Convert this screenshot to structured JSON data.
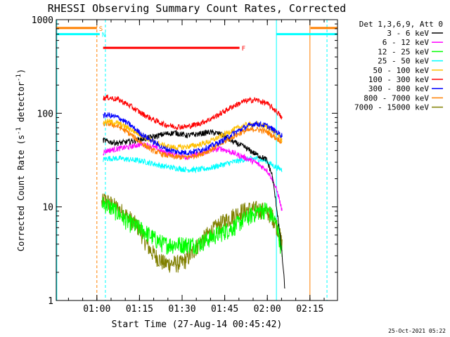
{
  "chart_data": {
    "type": "line",
    "title": "RHESSI Observing Summary Count Rates, Corrected",
    "xlabel": "Start Time (27-Aug-14 00:45:42)",
    "ylabel_parts": [
      "Corrected Count Rate (s",
      "-1",
      " detector",
      "-1",
      ")"
    ],
    "footer": "25-Oct-2021 05:22",
    "x_units": "minutes after 00:45:42",
    "xlim": [
      0,
      99
    ],
    "ylim": [
      1,
      1000
    ],
    "y_scale": "log",
    "x_ticks": [
      {
        "x": 14.3,
        "label": "01:00"
      },
      {
        "x": 29.3,
        "label": "01:15"
      },
      {
        "x": 44.3,
        "label": "01:30"
      },
      {
        "x": 59.3,
        "label": "01:45"
      },
      {
        "x": 74.3,
        "label": "02:00"
      },
      {
        "x": 89.3,
        "label": "02:15"
      }
    ],
    "y_ticks": [
      {
        "y": 1,
        "label": "1"
      },
      {
        "y": 10,
        "label": "10"
      },
      {
        "y": 100,
        "label": "100"
      },
      {
        "y": 1000,
        "label": "1000"
      }
    ],
    "legend_title": "Det 1,3,6,9, Att 0",
    "legend_position": "right",
    "series": [
      {
        "name": "3 - 6 keV",
        "color": "#000000",
        "x": [
          16.5,
          18,
          22,
          26,
          30,
          34,
          38,
          42,
          46,
          50,
          54,
          58,
          62,
          66,
          70,
          74,
          76,
          78,
          79.5,
          80.5
        ],
        "y": [
          52,
          50,
          48,
          50,
          53,
          56,
          60,
          62,
          58,
          60,
          63,
          60,
          50,
          44,
          37,
          32,
          22,
          8,
          3,
          1.3
        ]
      },
      {
        "name": "6 - 12 keV",
        "color": "#ff00ff",
        "x": [
          16.5,
          18,
          22,
          26,
          30,
          34,
          38,
          42,
          46,
          50,
          54,
          58,
          62,
          66,
          70,
          74,
          76,
          78,
          79.5
        ],
        "y": [
          38,
          40,
          42,
          44,
          47,
          44,
          38,
          36,
          34,
          37,
          40,
          42,
          38,
          34,
          30,
          25,
          20,
          14,
          9
        ]
      },
      {
        "name": "12 - 25 keV",
        "color": "#00ff00",
        "x": [
          16,
          17,
          19,
          21,
          23,
          25,
          27,
          29,
          31,
          33,
          35,
          38,
          41,
          44,
          47,
          50,
          53,
          56,
          59,
          62,
          65,
          68,
          71,
          74,
          76,
          78,
          79.5
        ],
        "y": [
          10.5,
          11,
          10,
          9,
          8,
          7,
          6.5,
          6,
          5.5,
          5,
          4.5,
          4,
          4,
          4,
          4,
          4,
          4.5,
          5,
          5.5,
          6,
          7,
          8,
          9,
          9.5,
          8,
          6,
          3
        ]
      },
      {
        "name": "25 - 50 keV",
        "color": "#00ffff",
        "x": [
          16.5,
          18,
          22,
          26,
          30,
          34,
          38,
          42,
          46,
          50,
          54,
          58,
          62,
          66,
          70,
          74,
          76,
          78,
          79.5
        ],
        "y": [
          32,
          33,
          33,
          32,
          31,
          29,
          27,
          26,
          25,
          25,
          26,
          28,
          30,
          32,
          33,
          31,
          28,
          26,
          25
        ]
      },
      {
        "name": "50 - 100 keV",
        "color": "#ffc000",
        "x": [
          16.5,
          18,
          22,
          26,
          30,
          34,
          38,
          42,
          46,
          50,
          54,
          58,
          62,
          66,
          70,
          74,
          76,
          78,
          79.5
        ],
        "y": [
          80,
          82,
          78,
          68,
          58,
          50,
          45,
          43,
          44,
          46,
          50,
          57,
          66,
          74,
          77,
          72,
          66,
          60,
          52
        ]
      },
      {
        "name": "100 - 300 keV",
        "color": "#ff0000",
        "x": [
          16.5,
          18,
          22,
          26,
          30,
          34,
          38,
          42,
          46,
          50,
          54,
          58,
          62,
          66,
          70,
          74,
          76,
          78,
          79.5
        ],
        "y": [
          145,
          148,
          140,
          120,
          100,
          86,
          76,
          72,
          72,
          77,
          86,
          100,
          118,
          134,
          140,
          128,
          115,
          102,
          88
        ]
      },
      {
        "name": "300 - 800 keV",
        "color": "#0000ff",
        "x": [
          16.5,
          18,
          22,
          26,
          30,
          34,
          38,
          42,
          46,
          50,
          54,
          58,
          62,
          66,
          70,
          74,
          76,
          78,
          79.5
        ],
        "y": [
          94,
          96,
          90,
          75,
          60,
          50,
          42,
          39,
          38,
          40,
          44,
          50,
          60,
          70,
          78,
          74,
          68,
          62,
          58
        ]
      },
      {
        "name": "800 - 7000 keV",
        "color": "#ff8000",
        "x": [
          16.5,
          18,
          22,
          26,
          30,
          34,
          38,
          42,
          46,
          50,
          54,
          58,
          62,
          66,
          70,
          74,
          76,
          78,
          79.5
        ],
        "y": [
          76,
          78,
          72,
          60,
          48,
          40,
          36,
          34,
          34,
          36,
          40,
          47,
          56,
          64,
          68,
          64,
          58,
          53,
          50
        ]
      },
      {
        "name": "7000 - 15000 keV",
        "color": "#808000",
        "x": [
          16,
          17,
          19,
          21,
          23,
          25,
          27,
          29,
          31,
          33,
          35,
          38,
          41,
          44,
          47,
          50,
          53,
          56,
          59,
          62,
          65,
          68,
          71,
          74,
          76,
          78,
          79.5
        ],
        "y": [
          11,
          12,
          11,
          10,
          9,
          8,
          7,
          6,
          4.5,
          3.5,
          3,
          2.5,
          2.5,
          2.5,
          3,
          4,
          5,
          6,
          7,
          8,
          9,
          9.5,
          9.5,
          9,
          8,
          6,
          4
        ]
      }
    ],
    "flags": [
      {
        "label": "S",
        "color": "#ff8000",
        "segments": [
          [
            0,
            14.3
          ],
          [
            89.5,
            99
          ]
        ],
        "y": 815
      },
      {
        "label": "N",
        "color": "#00ffff",
        "segments": [
          [
            0,
            15.3
          ],
          [
            77.5,
            99
          ]
        ],
        "y": 700
      },
      {
        "label": "F",
        "color": "#ff0000",
        "segments": [
          [
            16.5,
            64.5
          ]
        ],
        "y": 500
      }
    ],
    "markers": [
      {
        "x": 14.3,
        "color": "#ff8000",
        "style": "dashed"
      },
      {
        "x": 17.3,
        "color": "#00ffff",
        "style": "dashed"
      },
      {
        "x": 77.5,
        "color": "#00ffff",
        "style": "solid"
      },
      {
        "x": 89.3,
        "color": "#ff8000",
        "style": "solid"
      },
      {
        "x": 95.3,
        "color": "#00ffff",
        "style": "dashed"
      },
      {
        "x": 0.2,
        "color": "#00ffff",
        "style": "solid"
      }
    ]
  }
}
